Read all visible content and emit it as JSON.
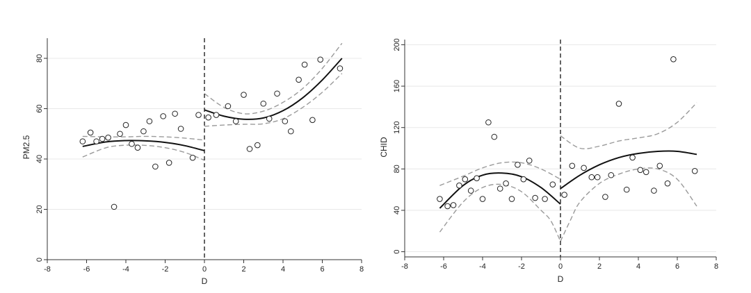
{
  "chart_data": [
    {
      "type": "scatter",
      "xlabel": "D",
      "ylabel": "PM2.5",
      "xlim": [
        -8,
        8
      ],
      "ylim": [
        0,
        88
      ],
      "xticks": [
        -8,
        -6,
        -4,
        -2,
        0,
        2,
        4,
        6,
        8
      ],
      "yticks": [
        0,
        20,
        40,
        60,
        80
      ],
      "grid": "horizontal",
      "cutoff": 0,
      "points": [
        [
          -6.2,
          47
        ],
        [
          -5.8,
          50.5
        ],
        [
          -5.5,
          47
        ],
        [
          -5.2,
          48
        ],
        [
          -4.9,
          48.5
        ],
        [
          -4.6,
          21
        ],
        [
          -4.3,
          50
        ],
        [
          -4.0,
          53.5
        ],
        [
          -3.7,
          46
        ],
        [
          -3.4,
          44.5
        ],
        [
          -3.1,
          51
        ],
        [
          -2.8,
          55
        ],
        [
          -2.5,
          37
        ],
        [
          -2.1,
          57
        ],
        [
          -1.8,
          38.5
        ],
        [
          -1.5,
          58
        ],
        [
          -1.2,
          52
        ],
        [
          -0.6,
          40.5
        ],
        [
          -0.3,
          57.5
        ],
        [
          0.2,
          56.5
        ],
        [
          0.6,
          57.5
        ],
        [
          1.2,
          61
        ],
        [
          1.6,
          55
        ],
        [
          2.0,
          65.5
        ],
        [
          2.3,
          44
        ],
        [
          2.7,
          45.5
        ],
        [
          3.0,
          62
        ],
        [
          3.3,
          56
        ],
        [
          3.7,
          66
        ],
        [
          4.1,
          55
        ],
        [
          4.4,
          51
        ],
        [
          4.8,
          71.5
        ],
        [
          5.1,
          77.5
        ],
        [
          5.5,
          55.5
        ],
        [
          5.9,
          79.5
        ],
        [
          6.9,
          76
        ]
      ],
      "fit_left": [
        [
          -6.2,
          45
        ],
        [
          -5,
          46.8
        ],
        [
          -4,
          47.3
        ],
        [
          -3,
          47.2
        ],
        [
          -2,
          46.6
        ],
        [
          -1,
          45.3
        ],
        [
          0,
          43.3
        ]
      ],
      "ci_left_upper": [
        [
          -6.2,
          49
        ],
        [
          -5,
          48.8
        ],
        [
          -4,
          48.8
        ],
        [
          -3,
          49
        ],
        [
          -2,
          48.8
        ],
        [
          -1,
          48.3
        ],
        [
          0,
          47.5
        ]
      ],
      "ci_left_lower": [
        [
          -6.2,
          40.8
        ],
        [
          -5,
          44.5
        ],
        [
          -4,
          45.5
        ],
        [
          -3,
          45.4
        ],
        [
          -2,
          44.5
        ],
        [
          -1,
          42.6
        ],
        [
          0,
          39.5
        ]
      ],
      "fit_right": [
        [
          0,
          59.5
        ],
        [
          1,
          57
        ],
        [
          2,
          55.8
        ],
        [
          3,
          56.3
        ],
        [
          4,
          59.2
        ],
        [
          5,
          64.3
        ],
        [
          6,
          71.4
        ],
        [
          7,
          80
        ]
      ],
      "ci_right_upper": [
        [
          0,
          66
        ],
        [
          1,
          60.5
        ],
        [
          2,
          58
        ],
        [
          3,
          59
        ],
        [
          4,
          62.5
        ],
        [
          5,
          68
        ],
        [
          6,
          76
        ],
        [
          7,
          86
        ]
      ],
      "ci_right_lower": [
        [
          0,
          53
        ],
        [
          1,
          53.5
        ],
        [
          2,
          53.8
        ],
        [
          3,
          54
        ],
        [
          4,
          56
        ],
        [
          5,
          60.5
        ],
        [
          6,
          66.5
        ],
        [
          7,
          74
        ]
      ]
    },
    {
      "type": "scatter",
      "xlabel": "D",
      "ylabel": "CHID",
      "xlim": [
        -8,
        8
      ],
      "ylim": [
        -5,
        205
      ],
      "xticks": [
        -8,
        -6,
        -4,
        -2,
        0,
        2,
        4,
        6,
        8
      ],
      "yticks": [
        0,
        40,
        80,
        120,
        160,
        200
      ],
      "grid": "horizontal",
      "cutoff": 0,
      "points": [
        [
          -6.2,
          51
        ],
        [
          -5.8,
          44
        ],
        [
          -5.5,
          45
        ],
        [
          -5.2,
          64
        ],
        [
          -4.9,
          70
        ],
        [
          -4.6,
          59
        ],
        [
          -4.3,
          71
        ],
        [
          -4.0,
          51
        ],
        [
          -3.7,
          125
        ],
        [
          -3.4,
          111
        ],
        [
          -3.1,
          61
        ],
        [
          -2.8,
          66
        ],
        [
          -2.5,
          51
        ],
        [
          -2.2,
          84
        ],
        [
          -1.9,
          70
        ],
        [
          -1.6,
          88
        ],
        [
          -1.3,
          52
        ],
        [
          -0.8,
          51
        ],
        [
          -0.4,
          65
        ],
        [
          0.2,
          55
        ],
        [
          0.6,
          83
        ],
        [
          1.2,
          81
        ],
        [
          1.6,
          72
        ],
        [
          1.9,
          72
        ],
        [
          2.3,
          53
        ],
        [
          2.6,
          74
        ],
        [
          3.0,
          143
        ],
        [
          3.4,
          60
        ],
        [
          3.7,
          91
        ],
        [
          4.1,
          79
        ],
        [
          4.4,
          77
        ],
        [
          4.8,
          59
        ],
        [
          5.1,
          83
        ],
        [
          5.5,
          66
        ],
        [
          5.8,
          186
        ],
        [
          6.9,
          78
        ]
      ],
      "fit_left": [
        [
          -6.2,
          42
        ],
        [
          -5,
          64
        ],
        [
          -4,
          74
        ],
        [
          -3,
          76
        ],
        [
          -2,
          72.5
        ],
        [
          -1,
          62
        ],
        [
          0,
          46
        ]
      ],
      "ci_left_upper": [
        [
          -6.2,
          64
        ],
        [
          -5,
          73
        ],
        [
          -4,
          81
        ],
        [
          -3,
          86
        ],
        [
          -2,
          86
        ],
        [
          -1,
          80
        ],
        [
          0,
          70
        ]
      ],
      "ci_left_lower": [
        [
          -6.2,
          19
        ],
        [
          -5,
          48
        ],
        [
          -4,
          62
        ],
        [
          -3,
          65
        ],
        [
          -2,
          58
        ],
        [
          -1,
          40
        ],
        [
          -0.5,
          30
        ],
        [
          0,
          10
        ]
      ],
      "fit_right": [
        [
          0,
          61
        ],
        [
          1,
          74
        ],
        [
          2,
          84
        ],
        [
          3,
          91
        ],
        [
          4,
          95
        ],
        [
          5,
          97
        ],
        [
          6,
          97
        ],
        [
          7,
          94
        ]
      ],
      "ci_right_upper": [
        [
          0,
          112
        ],
        [
          1,
          100
        ],
        [
          2,
          102
        ],
        [
          3,
          107
        ],
        [
          4,
          110
        ],
        [
          5,
          114
        ],
        [
          6,
          125
        ],
        [
          7,
          144
        ]
      ],
      "ci_right_lower": [
        [
          0,
          10
        ],
        [
          0.5,
          30
        ],
        [
          1,
          48
        ],
        [
          2,
          66
        ],
        [
          3,
          75
        ],
        [
          4,
          80
        ],
        [
          5,
          80
        ],
        [
          6,
          70
        ],
        [
          7,
          44
        ]
      ]
    }
  ]
}
